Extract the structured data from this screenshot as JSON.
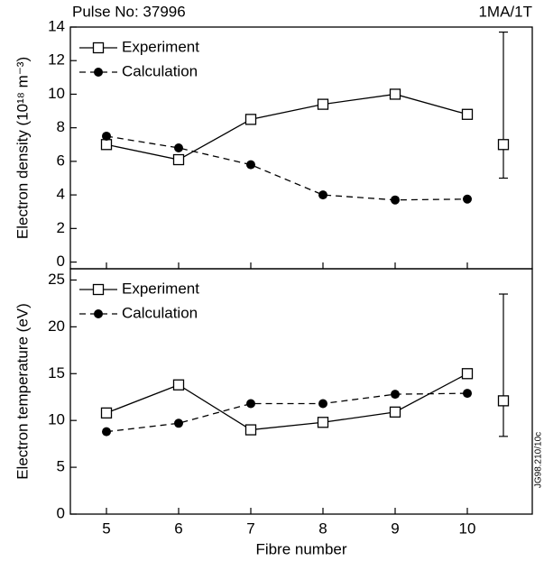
{
  "chart_data": [
    {
      "type": "line",
      "title": "Pulse No: 37996",
      "subtitle": "1MA/1T",
      "y_label": "Electron density (10¹⁸ m⁻³)",
      "x": [
        5,
        6,
        7,
        8,
        9,
        10
      ],
      "xlim": [
        4.5,
        10.9
      ],
      "ylim": [
        -0.4,
        14
      ],
      "yticks": [
        0,
        2,
        4,
        6,
        8,
        10,
        12,
        14
      ],
      "legend": "top-left",
      "series": [
        {
          "name": "Experiment",
          "color": "#000000",
          "marker": "square-open",
          "dash": false,
          "values": [
            7.0,
            6.1,
            8.5,
            9.4,
            10.0,
            8.8
          ]
        },
        {
          "name": "Calculation",
          "color": "#000000",
          "marker": "circle",
          "dash": true,
          "values": [
            7.5,
            6.8,
            5.8,
            4.0,
            3.7,
            3.75
          ]
        }
      ],
      "error_bar": {
        "x": 10.5,
        "y": 7.0,
        "low": 5.0,
        "high": 13.7
      }
    },
    {
      "type": "line",
      "y_label": "Electron temperature (eV)",
      "x_label": "Fibre number",
      "annotation": "JG98.210/10c",
      "x": [
        5,
        6,
        7,
        8,
        9,
        10
      ],
      "xlim": [
        4.5,
        10.9
      ],
      "xticks": [
        5,
        6,
        7,
        8,
        9,
        10
      ],
      "ylim": [
        0,
        26.2
      ],
      "yticks": [
        0,
        5,
        10,
        15,
        20,
        25
      ],
      "legend": "top-left",
      "series": [
        {
          "name": "Experiment",
          "color": "#000000",
          "marker": "square-open",
          "dash": false,
          "values": [
            10.8,
            13.8,
            9.0,
            9.8,
            10.9,
            15.0
          ]
        },
        {
          "name": "Calculation",
          "color": "#000000",
          "marker": "circle",
          "dash": true,
          "values": [
            8.8,
            9.7,
            11.8,
            11.8,
            12.8,
            12.9
          ]
        }
      ],
      "error_bar": {
        "x": 10.5,
        "y": 12.1,
        "low": 8.3,
        "high": 23.5
      }
    }
  ]
}
